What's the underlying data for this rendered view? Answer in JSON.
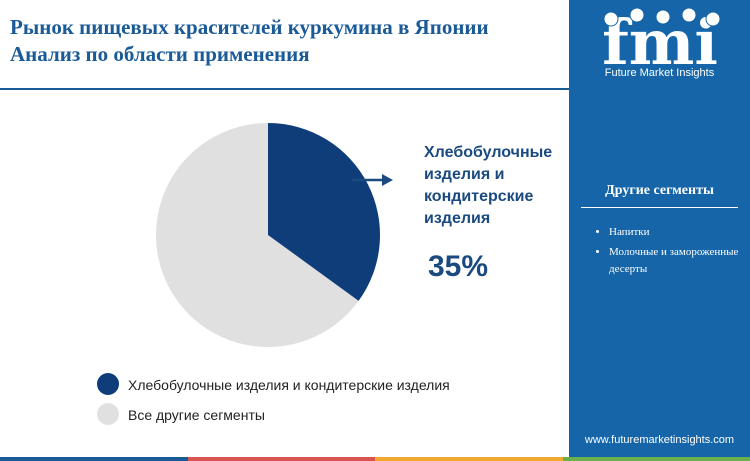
{
  "header": {
    "title_line1": "Рынок пищевых красителей куркумина в Японии",
    "title_line2": "Анализ по области применения"
  },
  "brand": {
    "logo_text": "fmi",
    "tagline": "Future Market Insights",
    "url": "www.futuremarketinsights.com"
  },
  "sidebar": {
    "heading": "Другие сегменты",
    "items": [
      "Напитки",
      "Молочные и замороженные десерты"
    ]
  },
  "callout": {
    "label": "Хлебобулочные изделия и кондитерские изделия",
    "value": "35%"
  },
  "chart_data": {
    "type": "pie",
    "title": "Рынок пищевых красителей куркумина в Японии — Анализ по области применения",
    "categories": [
      "Хлебобулочные изделия и кондитерские изделия",
      "Все другие сегменты"
    ],
    "values": [
      35,
      65
    ],
    "unit": "%",
    "legend_position": "bottom-left"
  },
  "colors": {
    "primary": "#0f3d7a",
    "other": "#e0e0e0",
    "title": "#1a5a96",
    "sidebar": "#1565a8",
    "bottom_bar": [
      "#1a5a96",
      "#d9534f",
      "#f0a830",
      "#6ab04c"
    ]
  }
}
